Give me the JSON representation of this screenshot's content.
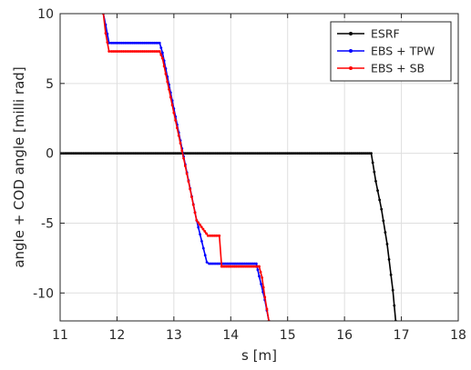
{
  "chart_data": {
    "type": "line",
    "title": "",
    "xlabel": "s [m]",
    "ylabel": "angle + COD angle [milli rad]",
    "xlim": [
      11,
      18
    ],
    "ylim": [
      -12,
      10
    ],
    "x_ticks": [
      11,
      12,
      13,
      14,
      15,
      16,
      17,
      18
    ],
    "y_ticks": [
      -10,
      -5,
      0,
      5,
      10
    ],
    "grid": true,
    "legend_position": "top-right",
    "series": [
      {
        "name": "ESRF",
        "color": "#000000",
        "x": [
          11.0,
          11.5,
          12.0,
          12.5,
          13.0,
          13.5,
          14.0,
          14.5,
          15.0,
          15.5,
          16.0,
          16.47,
          16.55,
          16.65,
          16.75,
          16.85,
          16.9
        ],
        "y": [
          0,
          0,
          0,
          0,
          0,
          0,
          0,
          0,
          0,
          0,
          0,
          0,
          -2.0,
          -4.0,
          -6.5,
          -9.8,
          -12.0
        ]
      },
      {
        "name": "EBS + TPW",
        "color": "#0000ff",
        "x": [
          11.76,
          11.8,
          11.86,
          11.9,
          12.3,
          12.75,
          12.8,
          13.0,
          13.2,
          13.4,
          13.58,
          13.62,
          14.0,
          14.45,
          14.5,
          14.6,
          14.67
        ],
        "y": [
          10.0,
          9.2,
          7.9,
          7.9,
          7.9,
          7.9,
          7.2,
          3.2,
          -0.8,
          -4.8,
          -7.8,
          -7.9,
          -7.9,
          -7.9,
          -8.8,
          -10.5,
          -12.0
        ]
      },
      {
        "name": "EBS + SB",
        "color": "#ff0000",
        "x": [
          11.76,
          11.8,
          11.86,
          11.9,
          12.3,
          12.75,
          12.8,
          13.0,
          13.2,
          13.4,
          13.6,
          13.66,
          13.8,
          13.84,
          14.1,
          14.5,
          14.55,
          14.6,
          14.67
        ],
        "y": [
          10.0,
          8.6,
          7.3,
          7.3,
          7.3,
          7.3,
          6.8,
          2.9,
          -0.9,
          -4.8,
          -5.9,
          -5.9,
          -5.9,
          -8.1,
          -8.1,
          -8.1,
          -8.9,
          -10.3,
          -12.0
        ]
      }
    ]
  }
}
